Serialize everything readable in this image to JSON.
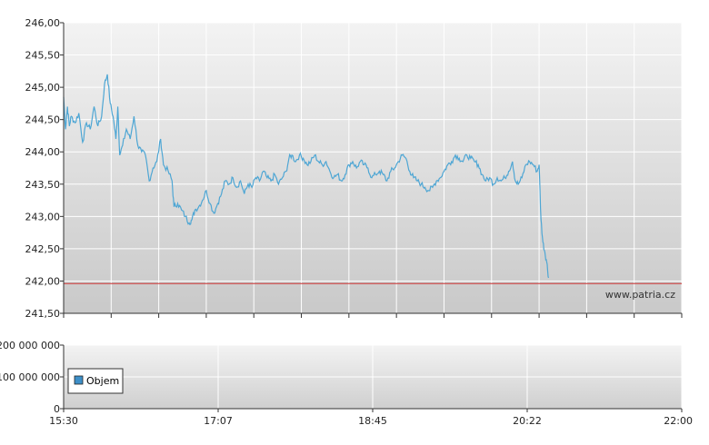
{
  "chart_data": [
    {
      "type": "line",
      "title": "",
      "xlabel": "",
      "ylabel": "",
      "ylim": [
        241.5,
        246.0
      ],
      "yticks": [
        "246,00",
        "245,50",
        "245,00",
        "244,50",
        "244,00",
        "243,50",
        "243,00",
        "242,50",
        "242,00",
        "241,50"
      ],
      "ytick_values": [
        246.0,
        245.5,
        245.0,
        244.5,
        244.0,
        243.5,
        243.0,
        242.5,
        242.0,
        241.5
      ],
      "x_hours": [
        15.5,
        16.0,
        16.5,
        17.0,
        17.5,
        18.0,
        18.5,
        19.0,
        19.5,
        20.0,
        20.5,
        21.0,
        21.5,
        22.0
      ],
      "x_range_hours": [
        15.5,
        22.0
      ],
      "grid": true,
      "reference_line": {
        "value": 241.96,
        "color": "#cc3333"
      },
      "series": [
        {
          "color": "#4ea6d4",
          "points": [
            [
              15.5,
              244.85
            ],
            [
              15.52,
              244.35
            ],
            [
              15.54,
              244.7
            ],
            [
              15.56,
              244.4
            ],
            [
              15.58,
              244.55
            ],
            [
              15.62,
              244.45
            ],
            [
              15.66,
              244.6
            ],
            [
              15.7,
              244.15
            ],
            [
              15.74,
              244.45
            ],
            [
              15.78,
              244.35
            ],
            [
              15.82,
              244.7
            ],
            [
              15.86,
              244.4
            ],
            [
              15.9,
              244.55
            ],
            [
              15.93,
              245.05
            ],
            [
              15.96,
              245.2
            ],
            [
              15.99,
              244.75
            ],
            [
              16.02,
              244.55
            ],
            [
              16.05,
              244.2
            ],
            [
              16.07,
              244.7
            ],
            [
              16.09,
              243.95
            ],
            [
              16.12,
              244.1
            ],
            [
              16.16,
              244.35
            ],
            [
              16.2,
              244.2
            ],
            [
              16.24,
              244.55
            ],
            [
              16.28,
              244.1
            ],
            [
              16.32,
              244.0
            ],
            [
              16.36,
              243.95
            ],
            [
              16.4,
              243.55
            ],
            [
              16.44,
              243.75
            ],
            [
              16.48,
              243.85
            ],
            [
              16.52,
              244.2
            ],
            [
              16.55,
              243.8
            ],
            [
              16.6,
              243.7
            ],
            [
              16.64,
              243.55
            ],
            [
              16.66,
              243.15
            ],
            [
              16.7,
              243.2
            ],
            [
              16.74,
              243.1
            ],
            [
              16.78,
              243.0
            ],
            [
              16.82,
              242.9
            ],
            [
              16.85,
              242.95
            ],
            [
              16.88,
              243.1
            ],
            [
              16.92,
              243.15
            ],
            [
              16.96,
              243.25
            ],
            [
              17.0,
              243.4
            ],
            [
              17.04,
              243.2
            ],
            [
              17.08,
              243.05
            ],
            [
              17.12,
              243.2
            ],
            [
              17.16,
              243.35
            ],
            [
              17.2,
              243.55
            ],
            [
              17.24,
              243.5
            ],
            [
              17.28,
              243.6
            ],
            [
              17.32,
              243.45
            ],
            [
              17.36,
              243.55
            ],
            [
              17.4,
              243.35
            ],
            [
              17.44,
              243.5
            ],
            [
              17.48,
              243.45
            ],
            [
              17.52,
              243.6
            ],
            [
              17.56,
              243.55
            ],
            [
              17.6,
              243.7
            ],
            [
              17.64,
              243.6
            ],
            [
              17.68,
              243.55
            ],
            [
              17.72,
              243.65
            ],
            [
              17.76,
              243.5
            ],
            [
              17.8,
              243.6
            ],
            [
              17.84,
              243.7
            ],
            [
              17.87,
              243.9
            ],
            [
              17.9,
              243.95
            ],
            [
              17.94,
              243.85
            ],
            [
              17.98,
              243.95
            ],
            [
              18.02,
              243.9
            ],
            [
              18.06,
              243.8
            ],
            [
              18.1,
              243.85
            ],
            [
              18.14,
              243.95
            ],
            [
              18.18,
              243.85
            ],
            [
              18.22,
              243.8
            ],
            [
              18.26,
              243.85
            ],
            [
              18.3,
              243.7
            ],
            [
              18.34,
              243.6
            ],
            [
              18.38,
              243.65
            ],
            [
              18.42,
              243.55
            ],
            [
              18.46,
              243.65
            ],
            [
              18.5,
              243.8
            ],
            [
              18.54,
              243.85
            ],
            [
              18.58,
              243.75
            ],
            [
              18.62,
              243.85
            ],
            [
              18.66,
              243.8
            ],
            [
              18.7,
              243.75
            ],
            [
              18.74,
              243.6
            ],
            [
              18.78,
              243.65
            ],
            [
              18.82,
              243.7
            ],
            [
              18.86,
              243.65
            ],
            [
              18.9,
              243.55
            ],
            [
              18.94,
              243.7
            ],
            [
              18.98,
              243.75
            ],
            [
              19.02,
              243.85
            ],
            [
              19.06,
              243.95
            ],
            [
              19.1,
              243.9
            ],
            [
              19.14,
              243.7
            ],
            [
              19.18,
              243.6
            ],
            [
              19.22,
              243.55
            ],
            [
              19.26,
              243.5
            ],
            [
              19.3,
              243.45
            ],
            [
              19.34,
              243.4
            ],
            [
              19.38,
              243.45
            ],
            [
              19.42,
              243.55
            ],
            [
              19.46,
              243.6
            ],
            [
              19.5,
              243.7
            ],
            [
              19.54,
              243.8
            ],
            [
              19.58,
              243.85
            ],
            [
              19.62,
              243.95
            ],
            [
              19.66,
              243.9
            ],
            [
              19.7,
              243.85
            ],
            [
              19.74,
              243.95
            ],
            [
              19.78,
              243.9
            ],
            [
              19.82,
              243.85
            ],
            [
              19.86,
              243.8
            ],
            [
              19.9,
              243.65
            ],
            [
              19.94,
              243.55
            ],
            [
              19.98,
              243.6
            ],
            [
              20.02,
              243.5
            ],
            [
              20.06,
              243.6
            ],
            [
              20.1,
              243.55
            ],
            [
              20.14,
              243.6
            ],
            [
              20.18,
              243.7
            ],
            [
              20.22,
              243.85
            ],
            [
              20.25,
              243.55
            ],
            [
              20.28,
              243.5
            ],
            [
              20.32,
              243.6
            ],
            [
              20.36,
              243.8
            ],
            [
              20.4,
              243.85
            ],
            [
              20.44,
              243.8
            ],
            [
              20.48,
              243.7
            ],
            [
              20.5,
              243.8
            ],
            [
              20.52,
              242.95
            ],
            [
              20.54,
              242.6
            ],
            [
              20.56,
              242.45
            ],
            [
              20.58,
              242.3
            ],
            [
              20.6,
              242.05
            ]
          ]
        }
      ]
    },
    {
      "type": "bar",
      "title": "",
      "xlabel": "",
      "ylabel": "",
      "ylim": [
        0,
        200000000
      ],
      "yticks": [
        "200 000 000",
        "100 000 000",
        "0"
      ],
      "ytick_values": [
        200000000,
        100000000,
        0
      ],
      "xticks": [
        "15:30",
        "17:07",
        "18:45",
        "20:22",
        "22:00"
      ],
      "grid": true,
      "legend_location": "lower-left",
      "series": [
        {
          "name": "Objem",
          "color": "#3d8fc8",
          "values": []
        }
      ]
    }
  ],
  "credit": "www.patria.cz"
}
